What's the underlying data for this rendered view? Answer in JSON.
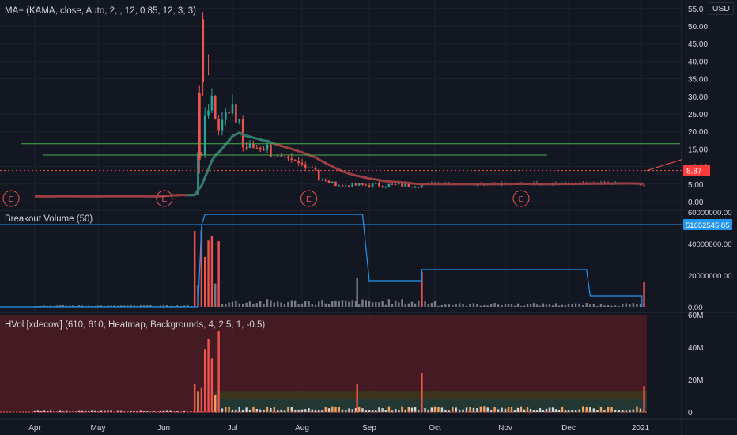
{
  "panes": {
    "price": {
      "indicator_label": "MA+ (KAMA, close, Auto, 2, , 12, 0.85, 12, 3, 3)",
      "currency": "USD",
      "axis_ticks": [
        "55.0",
        "50.00",
        "45.00",
        "40.00",
        "35.00",
        "30.00",
        "25.00",
        "20.00",
        "15.00",
        "10.00",
        "5.00",
        "0.00"
      ],
      "last_price_label": "8.87",
      "earnings_marker": "E"
    },
    "breakout_volume": {
      "indicator_label": "Breakout Volume (50)",
      "axis_ticks": [
        "60000000.00",
        "40000000.00",
        "20000000.00",
        "0.00"
      ],
      "current_value_label": "51652545.85"
    },
    "hvol": {
      "indicator_label": "HVol [xdecow] (610, 610, Heatmap, Backgrounds, 4, 2.5, 1, -0.5)",
      "axis_ticks": [
        "60M",
        "40M",
        "20M",
        "0"
      ]
    }
  },
  "time_axis": {
    "labels": [
      "Apr",
      "May",
      "Jun",
      "Jul",
      "Aug",
      "Sep",
      "Oct",
      "Nov",
      "Dec",
      "2021"
    ]
  },
  "chart_data": [
    {
      "type": "candlestick",
      "title": "MA+ (KAMA, close, Auto, 2, , 12, 0.85, 12, 3, 3)",
      "ylim": [
        0,
        55
      ],
      "x": [
        "Apr",
        "May",
        "Jun",
        "Jul",
        "Aug",
        "Sep",
        "Oct",
        "Nov",
        "Dec",
        "2021"
      ],
      "close_path_approx": [
        {
          "x": "Apr",
          "y": 1.5
        },
        {
          "x": "May",
          "y": 1.5
        },
        {
          "x": "Jun",
          "y": 1.8
        },
        {
          "x": "Jun (late)",
          "y": 40
        },
        {
          "x": "Jul",
          "y": 20
        },
        {
          "x": "Jul (late)",
          "y": 14
        },
        {
          "x": "Aug",
          "y": 12
        },
        {
          "x": "Sep",
          "y": 4
        },
        {
          "x": "Oct",
          "y": 5
        },
        {
          "x": "Nov",
          "y": 5
        },
        {
          "x": "Dec",
          "y": 5
        },
        {
          "x": "2021",
          "y": 8.87
        }
      ],
      "horizontal_levels": [
        16.5,
        13.3
      ],
      "last_price": 8.87
    },
    {
      "type": "bar",
      "title": "Breakout Volume (50)",
      "ylim": [
        0,
        60000000
      ],
      "last_value": 51652545.85
    },
    {
      "type": "bar",
      "title": "HVol [xdecow] (610, 610, Heatmap, Backgrounds, 4, 2.5, 1, -0.5)",
      "ylim": [
        0,
        60000000
      ]
    }
  ],
  "colors": {
    "background": "#131722",
    "up": "#26a69a",
    "down": "#ef5350",
    "kama_line": "#9b3f45",
    "kama_line_alt": "#2e7d6e",
    "level_line": "#4caf50",
    "breakout_line": "#2196f3",
    "price_badge": "#ff3b3b",
    "value_badge": "#2196f3"
  }
}
